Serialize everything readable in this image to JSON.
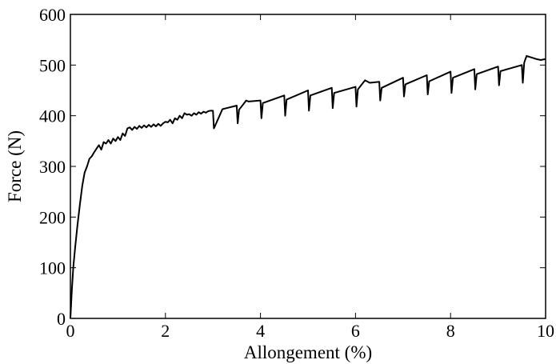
{
  "chart_data": {
    "type": "line",
    "xlabel": "Allongement (%)",
    "ylabel": "Force (N)",
    "xlim": [
      0,
      10
    ],
    "ylim": [
      0,
      600
    ],
    "xticks": [
      0,
      2,
      4,
      6,
      8,
      10
    ],
    "yticks": [
      0,
      100,
      200,
      300,
      400,
      500,
      600
    ],
    "xtick_labels": [
      "0",
      "2",
      "4",
      "6",
      "8",
      "10"
    ],
    "ytick_labels": [
      "0",
      "100",
      "200",
      "300",
      "400",
      "500",
      "600"
    ],
    "grid": false,
    "line_color": "#000000",
    "series": [
      {
        "x": [
          0,
          0.03,
          0.06,
          0.1,
          0.15,
          0.2,
          0.25,
          0.3,
          0.35,
          0.4,
          0.45,
          0.5,
          0.55,
          0.6,
          0.65,
          0.7,
          0.75,
          0.8,
          0.85,
          0.9,
          0.95,
          1.0,
          1.05,
          1.1,
          1.15,
          1.2,
          1.25,
          1.3,
          1.35,
          1.4,
          1.45,
          1.5,
          1.55,
          1.6,
          1.65,
          1.7,
          1.75,
          1.8,
          1.85,
          1.9,
          1.95,
          2.0,
          2.05,
          2.1,
          2.15,
          2.2,
          2.25,
          2.3,
          2.35,
          2.4,
          2.45,
          2.5,
          2.55,
          2.6,
          2.65,
          2.7,
          2.75,
          2.8,
          2.85,
          2.9,
          2.95,
          3.0,
          3.02,
          3.2,
          3.5,
          3.52,
          3.55,
          3.7,
          3.75,
          4.0,
          4.02,
          4.05,
          4.5,
          4.52,
          4.55,
          5.0,
          5.02,
          5.05,
          5.5,
          5.52,
          5.55,
          6.0,
          6.02,
          6.05,
          6.2,
          6.3,
          6.5,
          6.52,
          6.55,
          7.0,
          7.02,
          7.05,
          7.5,
          7.52,
          7.55,
          8.0,
          8.02,
          8.05,
          8.5,
          8.52,
          8.55,
          9.0,
          9.02,
          9.05,
          9.5,
          9.52,
          9.55,
          9.6,
          9.7,
          9.8,
          9.9,
          10.0
        ],
        "values": [
          0,
          55,
          100,
          140,
          185,
          225,
          262,
          288,
          300,
          315,
          320,
          328,
          335,
          342,
          333,
          348,
          345,
          352,
          345,
          355,
          350,
          358,
          352,
          365,
          360,
          375,
          377,
          372,
          378,
          374,
          380,
          376,
          381,
          377,
          382,
          378,
          383,
          379,
          384,
          380,
          385,
          388,
          387,
          392,
          385,
          395,
          392,
          400,
          395,
          405,
          402,
          403,
          400,
          405,
          402,
          407,
          404,
          408,
          406,
          409,
          410,
          410,
          375,
          413,
          420,
          385,
          412,
          430,
          428,
          430,
          395,
          425,
          440,
          400,
          432,
          450,
          410,
          440,
          455,
          415,
          445,
          457,
          418,
          452,
          470,
          465,
          467,
          430,
          455,
          475,
          438,
          462,
          480,
          442,
          468,
          487,
          445,
          475,
          492,
          452,
          482,
          497,
          460,
          488,
          500,
          465,
          505,
          518,
          515,
          512,
          510,
          512
        ]
      }
    ]
  }
}
